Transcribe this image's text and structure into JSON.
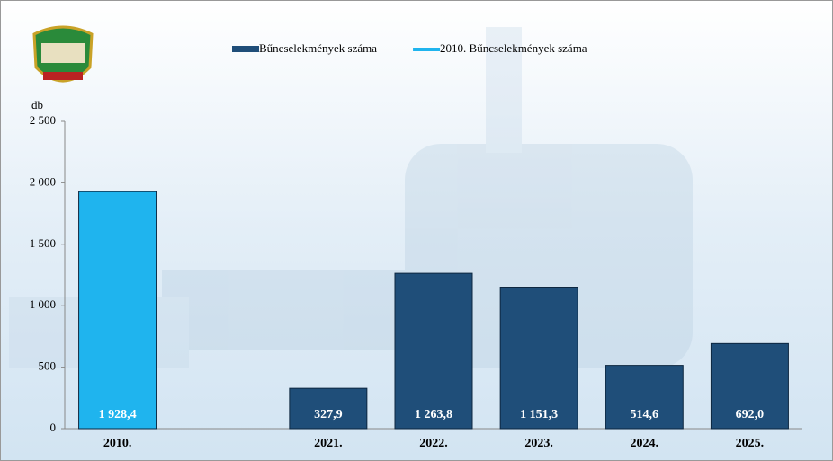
{
  "chart_data": {
    "type": "bar",
    "y_label": "db",
    "categories": [
      "2010.",
      null,
      "2021.",
      "2022.",
      "2023.",
      "2024.",
      "2025."
    ],
    "series": [
      {
        "name": "Bűncselekmények száma",
        "color": "#1f4e79",
        "values": [
          null,
          null,
          327.9,
          1263.8,
          1151.3,
          514.6,
          692.0
        ],
        "value_labels": [
          null,
          null,
          "327,9",
          "1 263,8",
          "1 151,3",
          "514,6",
          "692,0"
        ]
      },
      {
        "name": "2010. Bűncselekmények száma",
        "color": "#1fb4ee",
        "values": [
          1928.4,
          null,
          null,
          null,
          null,
          null,
          null
        ],
        "value_labels": [
          "1 928,4",
          null,
          null,
          null,
          null,
          null,
          null
        ]
      }
    ],
    "ylim": [
      0,
      2500
    ],
    "yticks": [
      0,
      500,
      {
        "value": 1000,
        "label": "1 000"
      },
      {
        "value": 1500,
        "label": "1 500"
      },
      {
        "value": 2000,
        "label": "2 000"
      },
      {
        "value": 2500,
        "label": "2 500"
      }
    ],
    "grid": false
  }
}
